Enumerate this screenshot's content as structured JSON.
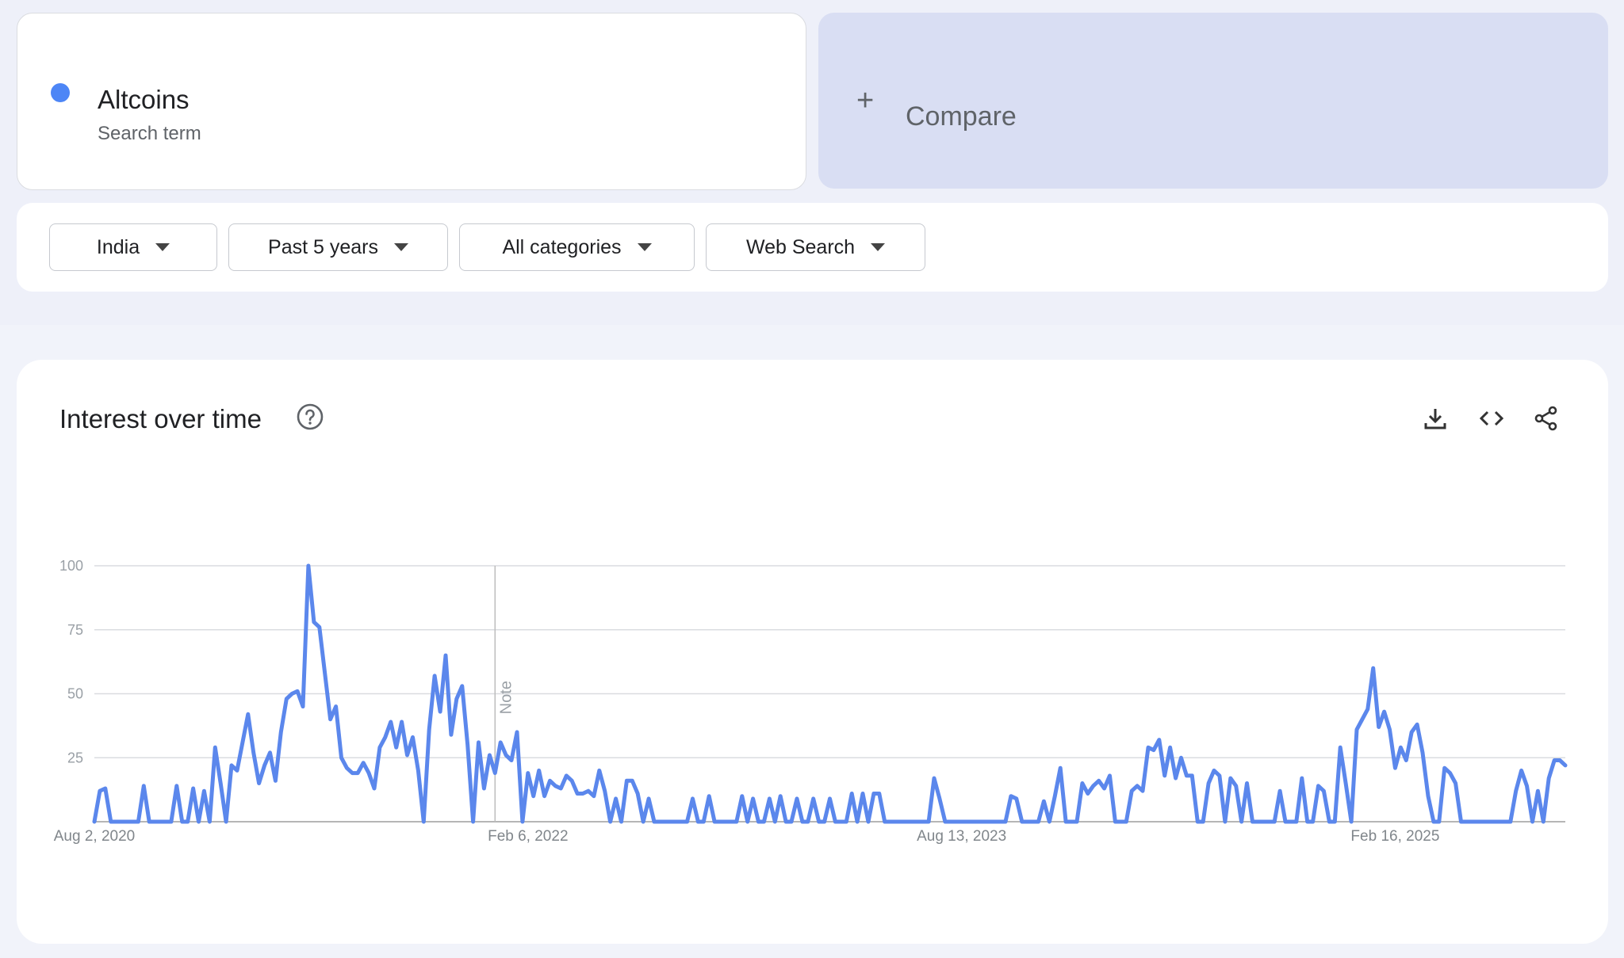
{
  "search_term": {
    "name": "Altcoins",
    "subtitle": "Search term",
    "color": "#4d86f6"
  },
  "compare": {
    "plus_icon": "+",
    "label": "Compare"
  },
  "filters": {
    "region": "India",
    "period": "Past 5 years",
    "category": "All categories",
    "property": "Web Search"
  },
  "chart_panel": {
    "title": "Interest over time",
    "help_icon": "question-circle-icon",
    "tools": [
      "download-icon",
      "embed-code-icon",
      "share-icon"
    ]
  },
  "chart_data": {
    "type": "line",
    "title": "Interest over time",
    "xlabel": "",
    "ylabel": "",
    "ylim": [
      0,
      100
    ],
    "yticks": [
      100,
      75,
      50,
      25
    ],
    "grid": true,
    "series_color": "#5b87ec",
    "x_tick_labels": [
      "Aug 2, 2020",
      "Feb 6, 2022",
      "Aug 13, 2023",
      "Feb 16, 2025"
    ],
    "x_tick_index": [
      0,
      79,
      158,
      237
    ],
    "annotation": {
      "label": "Note",
      "index": 73
    },
    "series": [
      {
        "values": [
          0,
          12,
          13,
          0,
          0,
          0,
          0,
          0,
          0,
          14,
          0,
          0,
          0,
          0,
          0,
          14,
          0,
          0,
          13,
          0,
          12,
          0,
          29,
          15,
          0,
          22,
          20,
          31,
          42,
          27,
          15,
          22,
          27,
          16,
          35,
          48,
          50,
          51,
          45,
          100,
          78,
          76,
          58,
          40,
          45,
          25,
          21,
          19,
          19,
          23,
          19,
          13,
          29,
          33,
          39,
          29,
          39,
          26,
          33,
          20,
          0,
          36,
          57,
          43,
          65,
          34,
          48,
          53,
          30,
          0,
          31,
          13,
          26,
          19,
          31,
          26,
          24,
          35,
          0,
          19,
          10,
          20,
          10,
          16,
          14,
          13,
          18,
          16,
          11,
          11,
          12,
          10,
          20,
          12,
          0,
          9,
          0,
          16,
          16,
          11,
          0,
          9,
          0,
          0,
          0,
          0,
          0,
          0,
          0,
          9,
          0,
          0,
          10,
          0,
          0,
          0,
          0,
          0,
          10,
          0,
          9,
          0,
          0,
          9,
          0,
          10,
          0,
          0,
          9,
          0,
          0,
          9,
          0,
          0,
          9,
          0,
          0,
          0,
          11,
          0,
          11,
          0,
          11,
          11,
          0,
          0,
          0,
          0,
          0,
          0,
          0,
          0,
          0,
          17,
          9,
          0,
          0,
          0,
          0,
          0,
          0,
          0,
          0,
          0,
          0,
          0,
          0,
          10,
          9,
          0,
          0,
          0,
          0,
          8,
          0,
          10,
          21,
          0,
          0,
          0,
          15,
          11,
          14,
          16,
          13,
          18,
          0,
          0,
          0,
          12,
          14,
          12,
          29,
          28,
          32,
          18,
          29,
          17,
          25,
          18,
          18,
          0,
          0,
          15,
          20,
          18,
          0,
          17,
          14,
          0,
          15,
          0,
          0,
          0,
          0,
          0,
          12,
          0,
          0,
          0,
          17,
          0,
          0,
          14,
          12,
          0,
          0,
          29,
          15,
          0,
          36,
          40,
          44,
          60,
          37,
          43,
          36,
          21,
          29,
          24,
          35,
          38,
          27,
          10,
          0,
          0,
          21,
          19,
          15,
          0,
          0,
          0,
          0,
          0,
          0,
          0,
          0,
          0,
          0,
          12,
          20,
          14,
          0,
          12,
          0,
          17,
          24,
          24,
          22
        ]
      }
    ]
  }
}
